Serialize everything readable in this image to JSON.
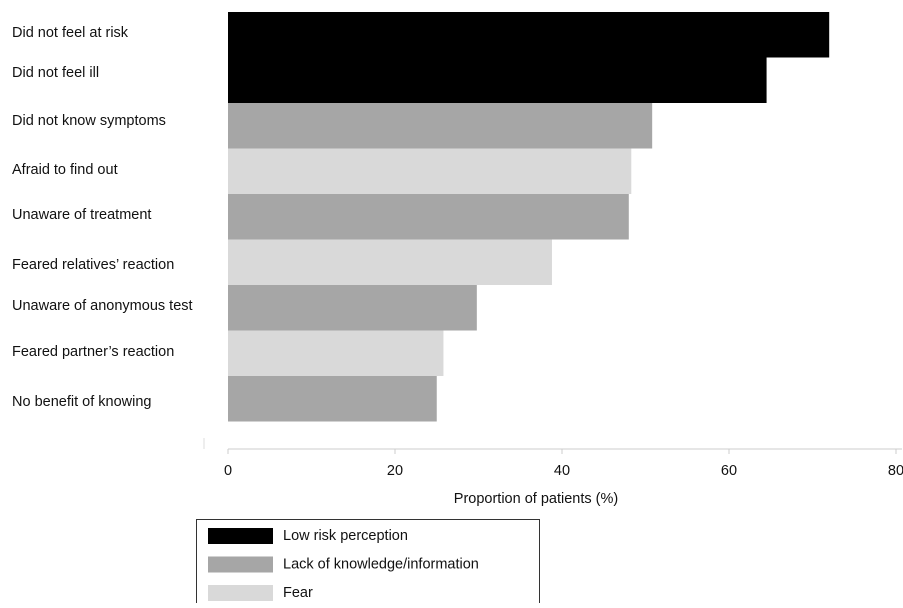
{
  "chart_data": {
    "type": "bar",
    "orientation": "horizontal",
    "title": "",
    "xlabel": "Proportion of patients (%)",
    "ylabel": "",
    "xlim": [
      0,
      80
    ],
    "xticks": [
      0,
      20,
      40,
      60,
      80
    ],
    "grid": false,
    "legend_position": "bottom-left",
    "categories": [
      "Did not feel at risk",
      "Did not feel ill",
      "Did not know symptoms",
      "Afraid to find out",
      "Unaware of treatment",
      "Feared relatives’ reaction",
      "Unaware of anonymous test",
      "Feared partner’s reaction",
      "No benefit of knowing"
    ],
    "values": [
      72.0,
      64.5,
      50.8,
      48.3,
      48.0,
      38.8,
      29.8,
      25.8,
      25.0
    ],
    "groups": [
      "Low risk perception",
      "Low risk perception",
      "Lack of knowledge/information",
      "Fear",
      "Lack of knowledge/information",
      "Fear",
      "Lack of knowledge/information",
      "Fear",
      "Lack of knowledge/information"
    ],
    "legend": [
      {
        "name": "Low risk perception",
        "color": "#000000"
      },
      {
        "name": "Lack of knowledge/information",
        "color": "#a6a6a6"
      },
      {
        "name": "Fear",
        "color": "#d9d9d9"
      }
    ]
  }
}
